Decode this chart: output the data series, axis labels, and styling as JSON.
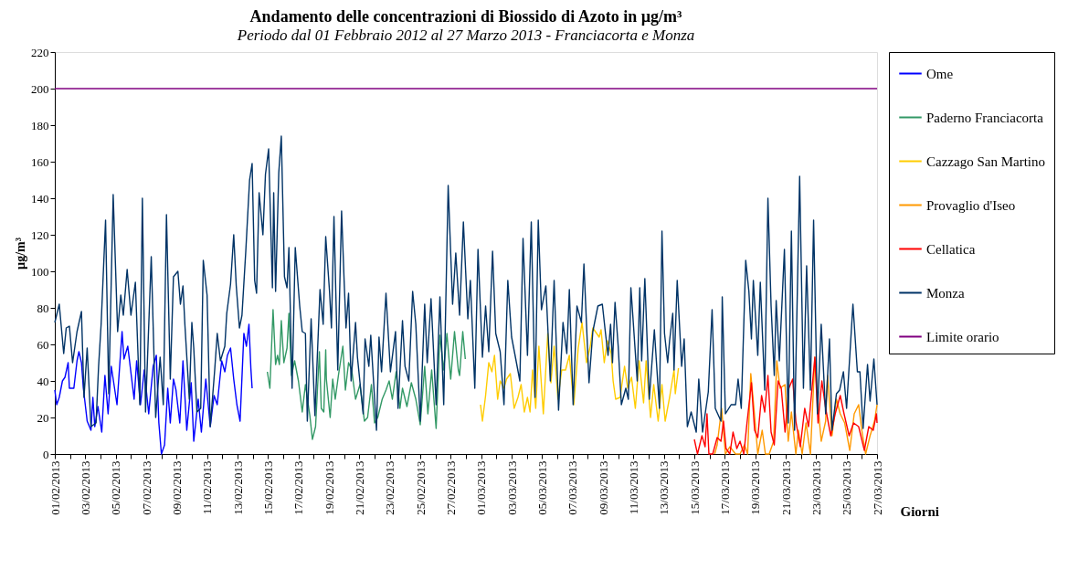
{
  "chart_data": {
    "type": "line",
    "title": "Andamento delle concentrazioni di Biossido di Azoto in µg/m³",
    "subtitle": "Periodo dal 01 Febbraio 2012 al 27 Marzo 2013 - Franciacorta e Monza",
    "xlabel": "Giorni",
    "ylabel": "µg/m³",
    "xlim": [
      "2013-02-01",
      "2013-03-27"
    ],
    "ylim": [
      0,
      220
    ],
    "yticks": [
      0,
      20,
      40,
      60,
      80,
      100,
      120,
      140,
      160,
      180,
      200,
      220
    ],
    "xticks": [
      {
        "value": "2013-02-01",
        "label": "01/02/2013"
      },
      {
        "value": "2013-02-02",
        "label": null
      },
      {
        "value": "2013-02-03",
        "label": "03/02/2013"
      },
      {
        "value": "2013-02-04",
        "label": null
      },
      {
        "value": "2013-02-05",
        "label": "05/02/2013"
      },
      {
        "value": "2013-02-06",
        "label": null
      },
      {
        "value": "2013-02-07",
        "label": "07/02/2013"
      },
      {
        "value": "2013-02-08",
        "label": null
      },
      {
        "value": "2013-02-09",
        "label": "09/02/2013"
      },
      {
        "value": "2013-02-10",
        "label": null
      },
      {
        "value": "2013-02-11",
        "label": "11/02/2013"
      },
      {
        "value": "2013-02-12",
        "label": null
      },
      {
        "value": "2013-02-13",
        "label": "13/02/2013"
      },
      {
        "value": "2013-02-14",
        "label": null
      },
      {
        "value": "2013-02-15",
        "label": "15/02/2013"
      },
      {
        "value": "2013-02-16",
        "label": null
      },
      {
        "value": "2013-02-17",
        "label": "17/02/2013"
      },
      {
        "value": "2013-02-18",
        "label": null
      },
      {
        "value": "2013-02-19",
        "label": "19/02/2013"
      },
      {
        "value": "2013-02-20",
        "label": null
      },
      {
        "value": "2013-02-21",
        "label": "21/02/2013"
      },
      {
        "value": "2013-02-22",
        "label": null
      },
      {
        "value": "2013-02-23",
        "label": "23/02/2013"
      },
      {
        "value": "2013-02-24",
        "label": null
      },
      {
        "value": "2013-02-25",
        "label": "25/02/2013"
      },
      {
        "value": "2013-02-26",
        "label": null
      },
      {
        "value": "2013-02-27",
        "label": "27/02/2013"
      },
      {
        "value": "2013-02-28",
        "label": null
      },
      {
        "value": "2013-03-01",
        "label": "01/03/2013"
      },
      {
        "value": "2013-03-02",
        "label": null
      },
      {
        "value": "2013-03-03",
        "label": "03/03/2013"
      },
      {
        "value": "2013-03-04",
        "label": null
      },
      {
        "value": "2013-03-05",
        "label": "05/03/2013"
      },
      {
        "value": "2013-03-06",
        "label": null
      },
      {
        "value": "2013-03-07",
        "label": "07/03/2013"
      },
      {
        "value": "2013-03-08",
        "label": null
      },
      {
        "value": "2013-03-09",
        "label": "09/03/2013"
      },
      {
        "value": "2013-03-10",
        "label": null
      },
      {
        "value": "2013-03-11",
        "label": "11/03/2013"
      },
      {
        "value": "2013-03-12",
        "label": null
      },
      {
        "value": "2013-03-13",
        "label": "13/03/2013"
      },
      {
        "value": "2013-03-14",
        "label": null
      },
      {
        "value": "2013-03-15",
        "label": "15/03/2013"
      },
      {
        "value": "2013-03-16",
        "label": null
      },
      {
        "value": "2013-03-17",
        "label": "17/03/2013"
      },
      {
        "value": "2013-03-18",
        "label": null
      },
      {
        "value": "2013-03-19",
        "label": "19/03/2013"
      },
      {
        "value": "2013-03-20",
        "label": null
      },
      {
        "value": "2013-03-21",
        "label": "21/03/2013"
      },
      {
        "value": "2013-03-22",
        "label": null
      },
      {
        "value": "2013-03-23",
        "label": "23/03/2013"
      },
      {
        "value": "2013-03-24",
        "label": null
      },
      {
        "value": "2013-03-25",
        "label": "25/03/2013"
      },
      {
        "value": "2013-03-26",
        "label": null
      },
      {
        "value": "2013-03-27",
        "label": "27/03/2013"
      }
    ],
    "grid": false,
    "legend": "right",
    "marker": "none",
    "line_style": "solid",
    "series": [
      {
        "name": "Ome",
        "color": "#0000ff",
        "x": [
          "2013-02-01T00:00",
          "2013-02-01T03:00",
          "2013-02-01T07:00",
          "2013-02-01T12:00",
          "2013-02-01T16:00",
          "2013-02-01T21:00",
          "2013-02-01T23:00",
          "2013-02-02T06:00",
          "2013-02-02T11:00",
          "2013-02-02T14:00",
          "2013-02-02T18:00",
          "2013-02-02T21:00",
          "2013-02-03T03:00",
          "2013-02-03T09:00",
          "2013-02-03T12:00",
          "2013-02-03T15:00",
          "2013-02-03T20:00",
          "2013-02-04T02:00",
          "2013-02-04T07:00",
          "2013-02-04T12:00",
          "2013-02-04T17:00",
          "2013-02-05T02:00",
          "2013-02-05T10:00",
          "2013-02-05T13:00",
          "2013-02-05T19:00",
          "2013-02-06T05:00",
          "2013-02-06T09:00",
          "2013-02-06T15:00",
          "2013-02-06T21:00",
          "2013-02-07T04:00",
          "2013-02-07T11:00",
          "2013-02-07T16:00",
          "2013-02-07T20:00",
          "2013-02-08T00:00",
          "2013-02-08T05:00",
          "2013-02-08T10:00",
          "2013-02-08T14:00",
          "2013-02-08T19:00",
          "2013-02-08T23:00",
          "2013-02-09T05:00",
          "2013-02-09T10:00",
          "2013-02-09T16:00",
          "2013-02-09T23:00",
          "2013-02-10T03:00",
          "2013-02-10T10:00",
          "2013-02-10T15:00",
          "2013-02-10T22:00",
          "2013-02-11T05:00",
          "2013-02-11T11:00",
          "2013-02-11T16:00",
          "2013-02-11T23:00",
          "2013-02-12T04:00",
          "2013-02-12T08:00",
          "2013-02-12T13:00",
          "2013-02-12T18:00",
          "2013-02-12T23:00",
          "2013-02-13T04:00",
          "2013-02-13T10:00",
          "2013-02-13T14:00",
          "2013-02-13T18:00",
          "2013-02-13T21:00",
          "2013-02-13T23:00"
        ],
        "values": [
          35,
          27,
          31,
          40,
          42,
          50,
          36,
          36,
          51,
          56,
          50,
          36,
          18,
          13,
          31,
          15,
          26,
          12,
          43,
          22,
          48,
          27,
          67,
          52,
          59,
          30,
          51,
          27,
          46,
          22,
          48,
          54,
          17,
          0,
          5,
          36,
          17,
          41,
          35,
          17,
          51,
          13,
          39,
          7,
          30,
          12,
          41,
          15,
          32,
          27,
          51,
          45,
          54,
          58,
          41,
          27,
          18,
          66,
          59,
          71,
          47,
          36
        ]
      },
      {
        "name": "Paderno Franciacorta",
        "color": "#339966",
        "x": [
          "2013-02-14T23:00",
          "2013-02-15T03:00",
          "2013-02-15T08:00",
          "2013-02-15T12:00",
          "2013-02-15T15:00",
          "2013-02-15T18:00",
          "2013-02-15T21:00",
          "2013-02-16T01:00",
          "2013-02-16T06:00",
          "2013-02-16T09:00",
          "2013-02-16T13:00",
          "2013-02-16T18:00",
          "2013-02-17T00:00",
          "2013-02-17T06:00",
          "2013-02-17T11:00",
          "2013-02-17T18:00",
          "2013-02-17T22:00",
          "2013-02-18T03:00",
          "2013-02-18T09:00",
          "2013-02-18T12:00",
          "2013-02-18T16:00",
          "2013-02-18T19:00",
          "2013-02-18T20:00",
          "2013-02-19T02:00",
          "2013-02-19T06:00",
          "2013-02-19T10:00",
          "2013-02-19T15:00",
          "2013-02-19T22:00",
          "2013-02-20T02:00",
          "2013-02-20T07:00",
          "2013-02-20T12:00",
          "2013-02-20T18:00",
          "2013-02-21T01:00",
          "2013-02-21T08:00",
          "2013-02-21T13:00",
          "2013-02-21T19:00",
          "2013-02-22T00:00",
          "2013-02-22T05:00",
          "2013-02-22T12:00",
          "2013-02-22T18:00",
          "2013-02-22T23:00",
          "2013-02-23T04:00",
          "2013-02-23T10:00",
          "2013-02-23T16:00",
          "2013-02-23T20:00",
          "2013-02-24T03:00",
          "2013-02-24T10:00",
          "2013-02-24T17:00",
          "2013-02-25T00:00",
          "2013-02-25T07:00",
          "2013-02-25T12:00",
          "2013-02-25T18:00",
          "2013-02-26T01:00",
          "2013-02-26T07:00",
          "2013-02-26T13:00",
          "2013-02-26T18:00",
          "2013-02-27T00:00",
          "2013-02-27T06:00",
          "2013-02-27T12:00",
          "2013-02-27T14:00",
          "2013-02-27T19:00",
          "2013-02-27T23:00"
        ],
        "values": [
          45,
          36,
          79,
          49,
          54,
          49,
          73,
          50,
          58,
          77,
          43,
          51,
          40,
          23,
          38,
          21,
          8,
          15,
          56,
          25,
          23,
          57,
          41,
          20,
          41,
          30,
          43,
          59,
          35,
          50,
          46,
          30,
          38,
          18,
          20,
          38,
          17,
          20,
          30,
          35,
          40,
          30,
          45,
          25,
          36,
          26,
          39,
          30,
          16,
          48,
          22,
          46,
          14,
          65,
          46,
          66,
          41,
          67,
          46,
          43,
          67,
          52
        ]
      },
      {
        "name": "Cazzago San Martino",
        "color": "#ffcc00",
        "x": [
          "2013-02-28T23:00",
          "2013-03-01T02:00",
          "2013-03-01T07:00",
          "2013-03-01T12:00",
          "2013-03-01T17:00",
          "2013-03-01T21:00",
          "2013-03-02T02:00",
          "2013-03-02T06:00",
          "2013-03-02T12:00",
          "2013-03-02T16:00",
          "2013-03-02T22:00",
          "2013-03-03T04:00",
          "2013-03-03T10:00",
          "2013-03-03T15:00",
          "2013-03-03T20:00",
          "2013-03-04T01:00",
          "2013-03-04T05:00",
          "2013-03-04T09:00",
          "2013-03-04T14:00",
          "2013-03-04T19:00",
          "2013-03-05T02:00",
          "2013-03-05T09:00",
          "2013-03-05T14:00",
          "2013-03-05T19:00",
          "2013-03-06T01:00",
          "2013-03-06T07:00",
          "2013-03-06T13:00",
          "2013-03-06T19:00",
          "2013-03-07T02:00",
          "2013-03-07T09:00",
          "2013-03-07T15:00",
          "2013-03-07T22:00",
          "2013-03-08T04:00",
          "2013-03-08T08:00",
          "2013-03-08T18:00",
          "2013-03-08T21:00",
          "2013-03-09T02:00",
          "2013-03-09T07:00",
          "2013-03-09T13:00",
          "2013-03-09T16:00",
          "2013-03-09T20:00",
          "2013-03-10T03:00",
          "2013-03-10T10:00",
          "2013-03-10T15:00",
          "2013-03-10T21:00",
          "2013-03-11T03:00",
          "2013-03-11T09:00",
          "2013-03-11T16:00",
          "2013-03-11T20:00",
          "2013-03-12T03:00",
          "2013-03-12T08:00",
          "2013-03-12T15:00",
          "2013-03-12T21:00",
          "2013-03-13T02:00",
          "2013-03-13T09:00",
          "2013-03-13T16:00",
          "2013-03-13T18:00",
          "2013-03-13T23:00"
        ],
        "values": [
          27,
          18,
          32,
          50,
          45,
          54,
          30,
          40,
          36,
          41,
          44,
          25,
          31,
          38,
          23,
          31,
          23,
          46,
          25,
          59,
          22,
          66,
          39,
          59,
          30,
          46,
          46,
          54,
          27,
          58,
          72,
          50,
          59,
          69,
          64,
          68,
          50,
          62,
          55,
          40,
          30,
          31,
          48,
          36,
          42,
          25,
          51,
          28,
          51,
          20,
          38,
          18,
          38,
          18,
          31,
          46,
          33,
          47
        ]
      },
      {
        "name": "Provaglio d'Iseo",
        "color": "#ff9900",
        "x": [
          "2013-03-16T08:00",
          "2013-03-16T12:00",
          "2013-03-16T19:00",
          "2013-03-17T01:00",
          "2013-03-17T08:00",
          "2013-03-17T17:00",
          "2013-03-18T00:00",
          "2013-03-18T07:00",
          "2013-03-18T12:00",
          "2013-03-18T17:00",
          "2013-03-18T22:00",
          "2013-03-19T04:00",
          "2013-03-19T11:00",
          "2013-03-19T16:00",
          "2013-03-19T22:00",
          "2013-03-20T05:00",
          "2013-03-20T10:00",
          "2013-03-20T15:00",
          "2013-03-20T23:00",
          "2013-03-21T04:00",
          "2013-03-21T09:00",
          "2013-03-21T16:00",
          "2013-03-21T20:00",
          "2013-03-22T02:00",
          "2013-03-22T08:00",
          "2013-03-22T15:00",
          "2013-03-22T22:00",
          "2013-03-23T02:00",
          "2013-03-23T08:00",
          "2013-03-23T15:00",
          "2013-03-23T18:00",
          "2013-03-24T01:00",
          "2013-03-24T08:00",
          "2013-03-24T14:00",
          "2013-03-24T21:00",
          "2013-03-25T05:00",
          "2013-03-25T12:00",
          "2013-03-25T19:00",
          "2013-03-26T00:00",
          "2013-03-26T06:00",
          "2013-03-26T13:00",
          "2013-03-26T20:00",
          "2013-03-27T00:00"
        ],
        "values": [
          0,
          5,
          25,
          0,
          4,
          0,
          0,
          5,
          0,
          44,
          25,
          0,
          13,
          0,
          0,
          7,
          51,
          36,
          38,
          7,
          23,
          0,
          13,
          0,
          17,
          0,
          53,
          30,
          7,
          18,
          43,
          10,
          30,
          22,
          17,
          2,
          22,
          27,
          13,
          0,
          10,
          18,
          27
        ]
      },
      {
        "name": "Cellatica",
        "color": "#ff0000",
        "x": [
          "2013-03-15T00:00",
          "2013-03-15T05:00",
          "2013-03-15T12:00",
          "2013-03-15T17:00",
          "2013-03-15T20:00",
          "2013-03-15T23:00",
          "2013-03-16T05:00",
          "2013-03-16T12:00",
          "2013-03-16T18:00",
          "2013-03-16T22:00",
          "2013-03-17T02:00",
          "2013-03-17T08:00",
          "2013-03-17T13:00",
          "2013-03-17T19:00",
          "2013-03-18T00:00",
          "2013-03-18T06:00",
          "2013-03-18T11:00",
          "2013-03-18T18:00",
          "2013-03-18T23:00",
          "2013-03-19T04:00",
          "2013-03-19T10:00",
          "2013-03-19T15:00",
          "2013-03-19T20:00",
          "2013-03-20T01:00",
          "2013-03-20T06:00",
          "2013-03-20T12:00",
          "2013-03-20T17:00",
          "2013-03-20T23:00",
          "2013-03-21T05:00",
          "2013-03-21T11:00",
          "2013-03-21T16:00",
          "2013-03-21T23:00",
          "2013-03-22T06:00",
          "2013-03-22T12:00",
          "2013-03-22T22:00",
          "2013-03-23T03:00",
          "2013-03-23T09:00",
          "2013-03-23T15:00",
          "2013-03-23T23:00",
          "2013-03-24T06:00",
          "2013-03-24T14:00",
          "2013-03-24T20:00",
          "2013-03-25T04:00",
          "2013-03-25T11:00",
          "2013-03-25T19:00",
          "2013-03-26T04:00",
          "2013-03-26T11:00",
          "2013-03-26T18:00",
          "2013-03-26T23:00",
          "2013-03-27T00:00"
        ],
        "values": [
          8,
          0,
          10,
          4,
          22,
          0,
          0,
          9,
          7,
          18,
          3,
          0,
          12,
          3,
          7,
          0,
          17,
          39,
          13,
          9,
          32,
          23,
          43,
          12,
          5,
          40,
          36,
          12,
          36,
          41,
          18,
          4,
          25,
          15,
          53,
          17,
          40,
          25,
          10,
          22,
          32,
          22,
          10,
          17,
          15,
          2,
          15,
          13,
          22,
          17
        ]
      },
      {
        "name": "Monza",
        "color": "#003366",
        "x": [
          "2013-02-01T00:00",
          "2013-02-01T07:00",
          "2013-02-01T14:00",
          "2013-02-01T18:00",
          "2013-02-01T23:00",
          "2013-02-02T04:00",
          "2013-02-02T11:00",
          "2013-02-02T18:00",
          "2013-02-02T22:00",
          "2013-02-03T03:00",
          "2013-02-03T09:00",
          "2013-02-03T17:00",
          "2013-02-03T21:00",
          "2013-02-04T01:00",
          "2013-02-04T08:00",
          "2013-02-04T13:00",
          "2013-02-04T20:00",
          "2013-02-05T03:00",
          "2013-02-05T08:00",
          "2013-02-05T12:00",
          "2013-02-05T18:00",
          "2013-02-06T00:00",
          "2013-02-06T07:00",
          "2013-02-06T14:00",
          "2013-02-06T18:00",
          "2013-02-06T23:00",
          "2013-02-07T08:00",
          "2013-02-07T15:00",
          "2013-02-07T22:00",
          "2013-02-08T03:00",
          "2013-02-08T08:00",
          "2013-02-08T14:00",
          "2013-02-08T19:00",
          "2013-02-09T02:00",
          "2013-02-09T06:00",
          "2013-02-09T10:00",
          "2013-02-09T13:00",
          "2013-02-09T20:00",
          "2013-02-10T00:00",
          "2013-02-10T03:00",
          "2013-02-10T08:00",
          "2013-02-10T14:00",
          "2013-02-10T18:00",
          "2013-02-11T00:00",
          "2013-02-11T05:00",
          "2013-02-11T12:00",
          "2013-02-11T16:00",
          "2013-02-11T21:00",
          "2013-02-12T04:00",
          "2013-02-12T07:00",
          "2013-02-12T13:00",
          "2013-02-12T18:00",
          "2013-02-12T22:00",
          "2013-02-13T03:00",
          "2013-02-13T07:00",
          "2013-02-13T13:00",
          "2013-02-13T19:00",
          "2013-02-13T23:00",
          "2013-02-14T03:00",
          "2013-02-14T06:00",
          "2013-02-14T10:00",
          "2013-02-14T16:00",
          "2013-02-14T20:00",
          "2013-02-15T01:00",
          "2013-02-15T07:00",
          "2013-02-15T09:00",
          "2013-02-15T12:00",
          "2013-02-15T17:00",
          "2013-02-15T21:00",
          "2013-02-16T02:00",
          "2013-02-16T06:00",
          "2013-02-16T09:00",
          "2013-02-16T14:00",
          "2013-02-16T19:00",
          "2013-02-17T02:00",
          "2013-02-17T06:00",
          "2013-02-17T11:00",
          "2013-02-17T14:00",
          "2013-02-17T20:00",
          "2013-02-18T02:00",
          "2013-02-18T10:00",
          "2013-02-18T15:00",
          "2013-02-18T19:00",
          "2013-02-19T01:00",
          "2013-02-19T04:00",
          "2013-02-19T08:00",
          "2013-02-19T12:00",
          "2013-02-19T14:00",
          "2013-02-19T20:00",
          "2013-02-20T00:00",
          "2013-02-20T03:00",
          "2013-02-20T07:00",
          "2013-02-20T11:00",
          "2013-02-20T18:00",
          "2013-02-20T21:00",
          "2013-02-21T06:00",
          "2013-02-21T09:00",
          "2013-02-21T15:00",
          "2013-02-21T18:00",
          "2013-02-22T03:00",
          "2013-02-22T07:00",
          "2013-02-22T11:00",
          "2013-02-22T18:00",
          "2013-02-23T01:00",
          "2013-02-23T09:00",
          "2013-02-23T13:00",
          "2013-02-23T20:00",
          "2013-02-24T00:00",
          "2013-02-24T06:00",
          "2013-02-24T12:00",
          "2013-02-24T17:00",
          "2013-02-25T00:00",
          "2013-02-25T07:00",
          "2013-02-25T11:00",
          "2013-02-25T17:00",
          "2013-02-26T01:00",
          "2013-02-26T07:00",
          "2013-02-26T13:00",
          "2013-02-26T20:00",
          "2013-02-27T03:00",
          "2013-02-27T08:00",
          "2013-02-27T14:00",
          "2013-02-27T20:00",
          "2013-02-28T03:00",
          "2013-02-28T07:00",
          "2013-02-28T14:00",
          "2013-02-28T19:00",
          "2013-03-01T02:00",
          "2013-03-01T07:00",
          "2013-03-01T12:00",
          "2013-03-01T18:00",
          "2013-03-01T23:00",
          "2013-03-02T06:00",
          "2013-03-02T12:00",
          "2013-03-02T18:00",
          "2013-03-03T00:00",
          "2013-03-03T06:00",
          "2013-03-03T13:00",
          "2013-03-03T18:00",
          "2013-03-04T01:00",
          "2013-03-04T07:00",
          "2013-03-04T13:00",
          "2013-03-04T18:00",
          "2013-03-04T23:00",
          "2013-03-05T06:00",
          "2013-03-05T13:00",
          "2013-03-05T19:00",
          "2013-03-06T02:00",
          "2013-03-06T09:00",
          "2013-03-06T15:00",
          "2013-03-06T19:00",
          "2013-03-07T01:00",
          "2013-03-07T07:00",
          "2013-03-07T14:00",
          "2013-03-07T18:00",
          "2013-03-08T02:00",
          "2013-03-08T08:00",
          "2013-03-08T16:00",
          "2013-03-08T23:00",
          "2013-03-09T04:00",
          "2013-03-09T08:00",
          "2013-03-09T12:00",
          "2013-03-09T15:00",
          "2013-03-09T19:00",
          "2013-03-10T00:00",
          "2013-03-10T05:00",
          "2013-03-10T12:00",
          "2013-03-10T16:00",
          "2013-03-10T20:00",
          "2013-03-10T23:00",
          "2013-03-11T06:00",
          "2013-03-11T10:00",
          "2013-03-11T13:00",
          "2013-03-11T18:00",
          "2013-03-12T01:00",
          "2013-03-12T09:00",
          "2013-03-12T17:00",
          "2013-03-12T21:00",
          "2013-03-13T01:00",
          "2013-03-13T06:00",
          "2013-03-13T09:00",
          "2013-03-13T14:00",
          "2013-03-13T16:00",
          "2013-03-13T21:00",
          "2013-03-14T04:00",
          "2013-03-14T08:00",
          "2013-03-14T13:00",
          "2013-03-14T19:00",
          "2013-03-15T03:00",
          "2013-03-15T07:00",
          "2013-03-15T13:00",
          "2013-03-15T22:00",
          "2013-03-16T04:00",
          "2013-03-16T09:00",
          "2013-03-16T18:00",
          "2013-03-16T20:00",
          "2013-03-17T01:00",
          "2013-03-17T10:00",
          "2013-03-17T17:00",
          "2013-03-17T21:00",
          "2013-03-18T02:00",
          "2013-03-18T09:00",
          "2013-03-18T14:00",
          "2013-03-18T18:00",
          "2013-03-18T21:00",
          "2013-03-19T04:00",
          "2013-03-19T08:00",
          "2013-03-19T15:00",
          "2013-03-19T20:00",
          "2013-03-20T01:00",
          "2013-03-20T06:00",
          "2013-03-20T09:00",
          "2013-03-20T14:00",
          "2013-03-20T22:00",
          "2013-03-21T04:00",
          "2013-03-21T09:00",
          "2013-03-21T14:00",
          "2013-03-21T22:00",
          "2013-03-22T04:00",
          "2013-03-22T09:00",
          "2013-03-22T15:00",
          "2013-03-22T20:00",
          "2013-03-23T02:00",
          "2013-03-23T08:00",
          "2013-03-23T15:00",
          "2013-03-23T21:00",
          "2013-03-24T01:00",
          "2013-03-24T08:00",
          "2013-03-24T13:00",
          "2013-03-24T19:00",
          "2013-03-25T00:00",
          "2013-03-25T10:00",
          "2013-03-25T17:00",
          "2013-03-25T21:00",
          "2013-03-26T02:00",
          "2013-03-26T09:00",
          "2013-03-26T13:00",
          "2013-03-26T19:00",
          "2013-03-27T00:00"
        ],
        "values": [
          72,
          82,
          55,
          69,
          70,
          50,
          67,
          78,
          31,
          58,
          15,
          17,
          48,
          71,
          128,
          33,
          142,
          67,
          87,
          76,
          101,
          76,
          94,
          27,
          140,
          23,
          108,
          20,
          53,
          27,
          131,
          41,
          97,
          100,
          82,
          92,
          71,
          30,
          72,
          58,
          23,
          25,
          106,
          87,
          15,
          46,
          66,
          51,
          59,
          77,
          93,
          120,
          92,
          69,
          76,
          111,
          150,
          159,
          95,
          88,
          143,
          120,
          153,
          167,
          91,
          143,
          89,
          154,
          174,
          97,
          91,
          113,
          36,
          113,
          81,
          67,
          66,
          18,
          74,
          21,
          90,
          71,
          119,
          89,
          69,
          130,
          73,
          46,
          133,
          95,
          69,
          88,
          40,
          72,
          53,
          22,
          63,
          48,
          65,
          13,
          64,
          45,
          88,
          45,
          67,
          25,
          73,
          48,
          40,
          89,
          71,
          18,
          82,
          50,
          85,
          27,
          86,
          27,
          147,
          82,
          110,
          76,
          127,
          74,
          95,
          36,
          112,
          53,
          81,
          56,
          111,
          66,
          56,
          27,
          95,
          64,
          53,
          40,
          118,
          54,
          127,
          31,
          128,
          79,
          92,
          40,
          95,
          24,
          72,
          55,
          90,
          27,
          81,
          72,
          104,
          39,
          67,
          81,
          82,
          66,
          54,
          71,
          50,
          83,
          59,
          27,
          36,
          30,
          91,
          76,
          40,
          91,
          51,
          96,
          30,
          68,
          25,
          122,
          66,
          50,
          62,
          77,
          46,
          95,
          48,
          63,
          15,
          23,
          12,
          41,
          12,
          34,
          79,
          25,
          18,
          86,
          22,
          27,
          27,
          41,
          25,
          106,
          89,
          63,
          95,
          54,
          94,
          35,
          140,
          81,
          43,
          84,
          51,
          112,
          17,
          122,
          13,
          152,
          36,
          103,
          35,
          128,
          22,
          71,
          22,
          63,
          13,
          33,
          35,
          45,
          25,
          82,
          45,
          45,
          14,
          49,
          29,
          52,
          27
        ]
      },
      {
        "name": "Limite orario",
        "color": "#800080",
        "x": [
          "2013-02-01T00:00",
          "2013-03-27T00:00"
        ],
        "values": [
          200,
          200
        ]
      }
    ]
  }
}
